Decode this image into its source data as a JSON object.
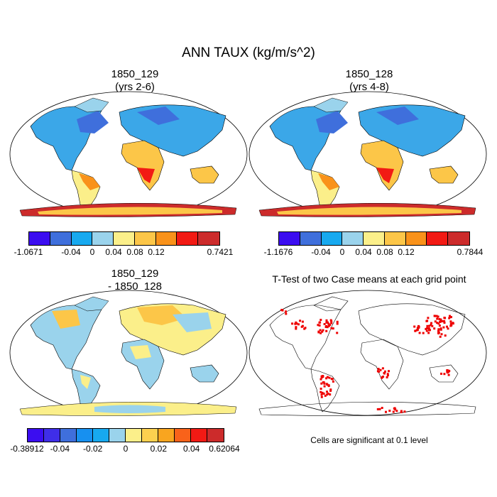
{
  "title": "ANN TAUX (kg/m/s^2)",
  "panels": [
    {
      "title_line1": "1850_129",
      "title_line2": "(yrs 2-6)"
    },
    {
      "title_line1": "1850_128",
      "title_line2": "(yrs 4-8)"
    },
    {
      "title_line1": "1850_129",
      "title_line2": "- 1850_128"
    },
    {
      "title_line1": "T-Test of two Case means at each grid point"
    }
  ],
  "colorbars": [
    {
      "colors": [
        "#3b0df0",
        "#3f6fdc",
        "#17a9ef",
        "#9ad3ec",
        "#fbef8a",
        "#fcc648",
        "#f9921a",
        "#f21a14",
        "#cc2b2b"
      ],
      "labels": [
        "-1.0671",
        "-0.04",
        "0",
        "0.04",
        "0.08",
        "0.12",
        "0.7421"
      ],
      "label_edges": [
        0,
        2,
        3,
        4,
        5,
        6,
        9
      ]
    },
    {
      "colors": [
        "#3b0df0",
        "#3f6fdc",
        "#17a9ef",
        "#9ad3ec",
        "#fbef8a",
        "#fcc648",
        "#f9921a",
        "#f21a14",
        "#cc2b2b"
      ],
      "labels": [
        "-1.1676",
        "-0.04",
        "0",
        "0.04",
        "0.08",
        "0.12",
        "0.7844"
      ],
      "label_edges": [
        0,
        2,
        3,
        4,
        5,
        6,
        9
      ]
    },
    {
      "colors": [
        "#3b0df0",
        "#3f2ee8",
        "#3f6fdc",
        "#1790f0",
        "#17a9ef",
        "#9ad3ec",
        "#fbef8a",
        "#fcd04f",
        "#f9a51f",
        "#f9621a",
        "#f21a14",
        "#cc2b2b"
      ],
      "labels": [
        "-0.38912",
        "-0.04",
        "-0.02",
        "0",
        "0.02",
        "0.04",
        "0.62064"
      ],
      "label_edges": [
        0,
        2,
        4,
        6,
        8,
        10,
        12
      ]
    }
  ],
  "significance_color": "#ee0000",
  "note": "Cells are significant at 0.1 level"
}
